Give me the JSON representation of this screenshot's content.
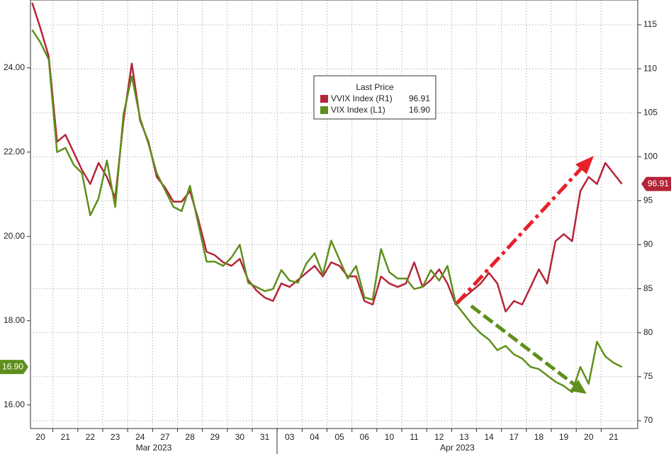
{
  "chart_data": {
    "type": "line",
    "legend_title": "Last Price",
    "legend": "top-center",
    "grid": true,
    "categories": [
      null,
      "20",
      null,
      null,
      "21",
      null,
      null,
      "22",
      null,
      null,
      "23",
      null,
      null,
      "24",
      null,
      null,
      "27",
      null,
      null,
      "28",
      null,
      null,
      "29",
      null,
      null,
      "30",
      null,
      null,
      "31",
      null,
      null,
      "03",
      null,
      null,
      "04",
      null,
      null,
      "05",
      null,
      null,
      "06",
      null,
      null,
      "10",
      null,
      null,
      "11",
      null,
      null,
      "12",
      null,
      null,
      "13",
      null,
      null,
      "14",
      null,
      null,
      "17",
      null,
      null,
      "18",
      null,
      null,
      "19",
      null,
      null,
      "20",
      null,
      null,
      "21",
      null
    ],
    "month_labels": [
      "Mar 2023",
      "Apr 2023"
    ],
    "ylim": [
      15.44,
      25.61
    ],
    "yticks": [
      {
        "value": 16,
        "label": "16.00"
      },
      {
        "value": 18,
        "label": "18.00"
      },
      {
        "value": 20,
        "label": "20.00"
      },
      {
        "value": 22,
        "label": "22.00"
      },
      {
        "value": 24,
        "label": "24.00"
      }
    ],
    "y2lim": [
      69.11,
      117.82
    ],
    "y2ticks": [
      70,
      75,
      80,
      85,
      90,
      95,
      100,
      105,
      110,
      115
    ],
    "series": [
      {
        "name": "VVIX Index (R1)",
        "color": "#b52538",
        "axis": "y2",
        "last_value_label": "96.91",
        "values": [
          117.5,
          114.6,
          111.4,
          101.7,
          102.5,
          100.5,
          98.5,
          96.9,
          99.3,
          97.7,
          95.3,
          104.1,
          110.6,
          104.1,
          101.7,
          97.7,
          96.5,
          94.9,
          94.9,
          96.1,
          92.9,
          89.2,
          88.8,
          88.0,
          87.6,
          88.4,
          86.0,
          84.8,
          84.0,
          83.6,
          85.6,
          85.2,
          86.0,
          86.8,
          87.6,
          86.4,
          88.0,
          87.6,
          86.4,
          86.4,
          83.6,
          83.2,
          86.4,
          85.6,
          85.2,
          85.6,
          88.0,
          85.2,
          86.0,
          87.2,
          85.6,
          83.2,
          84.0,
          84.8,
          85.6,
          86.8,
          85.6,
          82.4,
          83.6,
          83.2,
          85.2,
          87.2,
          85.6,
          90.4,
          91.2,
          90.4,
          96.1,
          97.7,
          96.9,
          99.3,
          98.1,
          96.91
        ]
      },
      {
        "name": "VIX Index (L1)",
        "color": "#5f8f1c",
        "last_value_label": "16.90",
        "values": [
          24.9,
          24.6,
          24.2,
          22.0,
          22.1,
          21.7,
          21.5,
          20.5,
          20.9,
          21.8,
          20.7,
          22.9,
          23.8,
          22.8,
          22.2,
          21.5,
          21.1,
          20.7,
          20.6,
          21.2,
          20.3,
          19.4,
          19.4,
          19.3,
          19.5,
          19.8,
          18.9,
          18.8,
          18.7,
          18.75,
          19.2,
          18.95,
          18.9,
          19.35,
          19.6,
          19.1,
          19.9,
          19.45,
          19.0,
          19.3,
          18.55,
          18.5,
          19.7,
          19.15,
          19.0,
          19.0,
          18.75,
          18.8,
          19.2,
          18.95,
          19.3,
          18.4,
          18.15,
          17.9,
          17.7,
          17.55,
          17.3,
          17.4,
          17.2,
          17.1,
          16.9,
          16.85,
          16.7,
          16.55,
          16.45,
          16.3,
          16.9,
          16.5,
          17.5,
          17.15,
          17.0,
          16.9
        ]
      }
    ]
  }
}
